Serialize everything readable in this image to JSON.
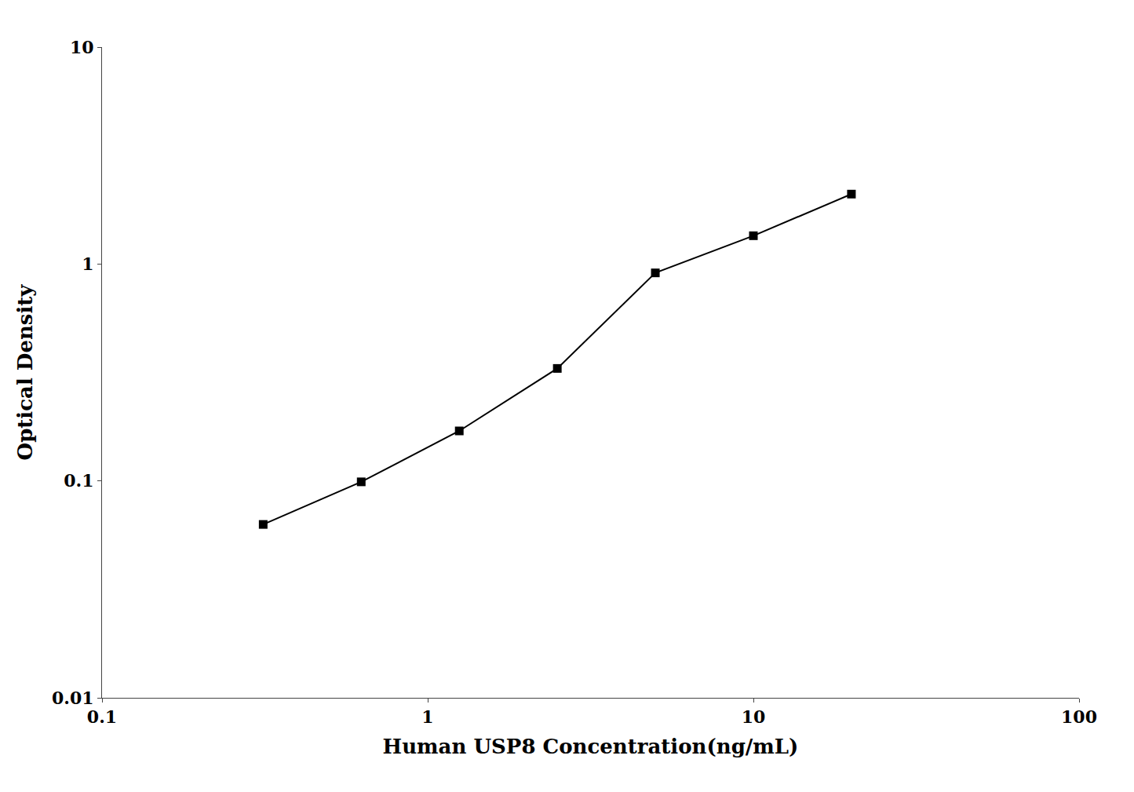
{
  "chart_data": {
    "type": "line",
    "x": [
      0.3125,
      0.625,
      1.25,
      2.5,
      5.0,
      10.0,
      20.0
    ],
    "values": [
      0.063,
      0.099,
      0.17,
      0.33,
      0.91,
      1.35,
      2.1
    ],
    "xlabel": "Human USP8 Concentration(ng/mL)",
    "ylabel": "Optical Density",
    "xlim": [
      0.1,
      100
    ],
    "ylim": [
      0.01,
      10
    ],
    "xticks": [
      0.1,
      1,
      10,
      100
    ],
    "yticks": [
      0.01,
      0.1,
      1,
      10
    ],
    "log": true,
    "grid": false,
    "color": "#000000",
    "marker": "square",
    "line_style": "solid"
  }
}
